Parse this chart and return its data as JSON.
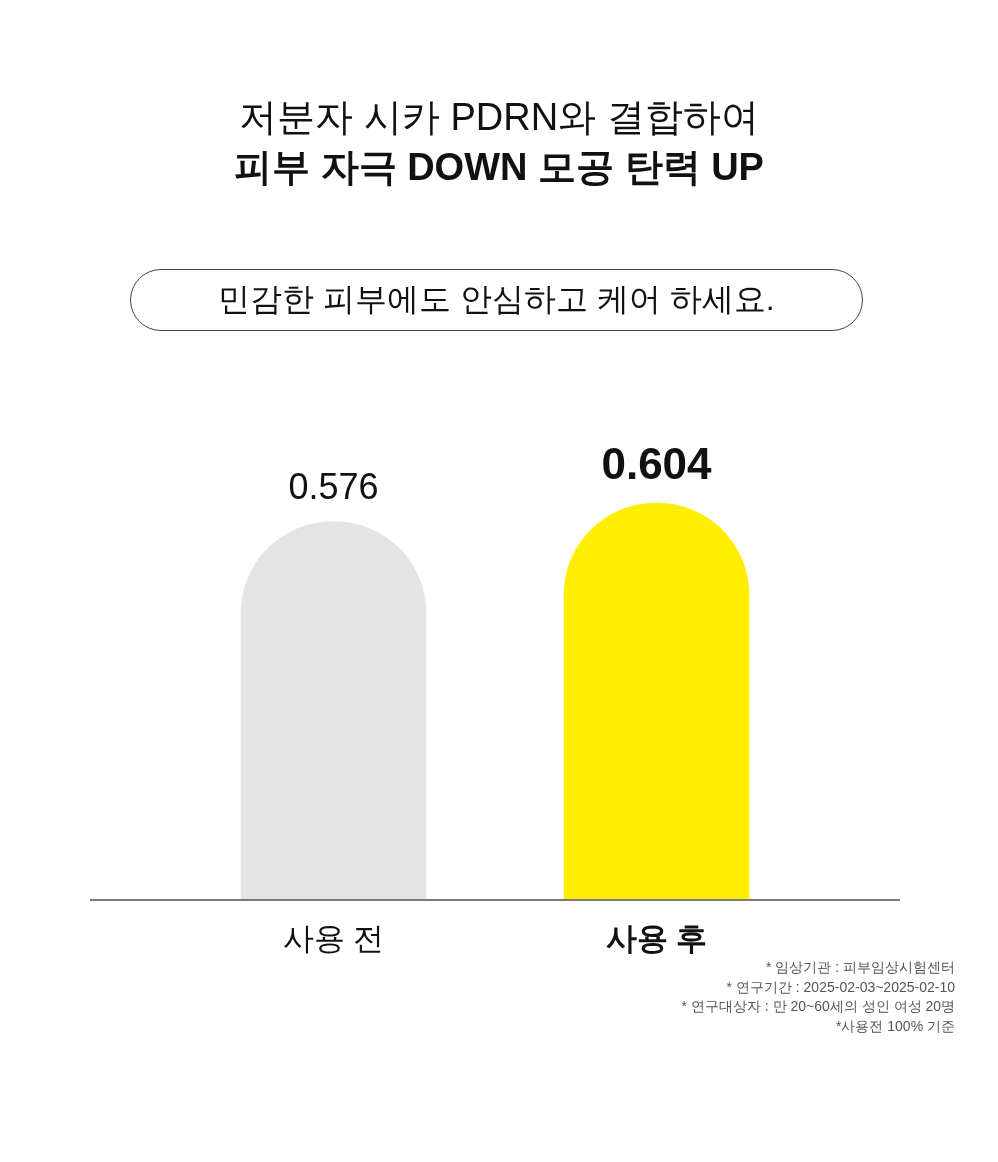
{
  "chart_data": {
    "type": "bar",
    "title": "저분자 시카 PDRN와 결합하여\n피부 자극 DOWN 모공 탄력 UP",
    "subtitle": "민감한 피부에도 안심하고 케어 하세요.",
    "categories": [
      "사용 전",
      "사용 후"
    ],
    "values": [
      0.576,
      0.604
    ],
    "colors": [
      "#e4e4e4",
      "#ffee00"
    ],
    "data_labels": true,
    "tick_labels": "x",
    "annotations": [
      "* 임상기관 : 피부임상시험센터",
      "* 연구기간 : 2025-02-03~2025-02-10",
      "* 연구대상자 : 만 20~60세의 성인 여성 20명",
      "*사용전 100% 기준"
    ]
  }
}
